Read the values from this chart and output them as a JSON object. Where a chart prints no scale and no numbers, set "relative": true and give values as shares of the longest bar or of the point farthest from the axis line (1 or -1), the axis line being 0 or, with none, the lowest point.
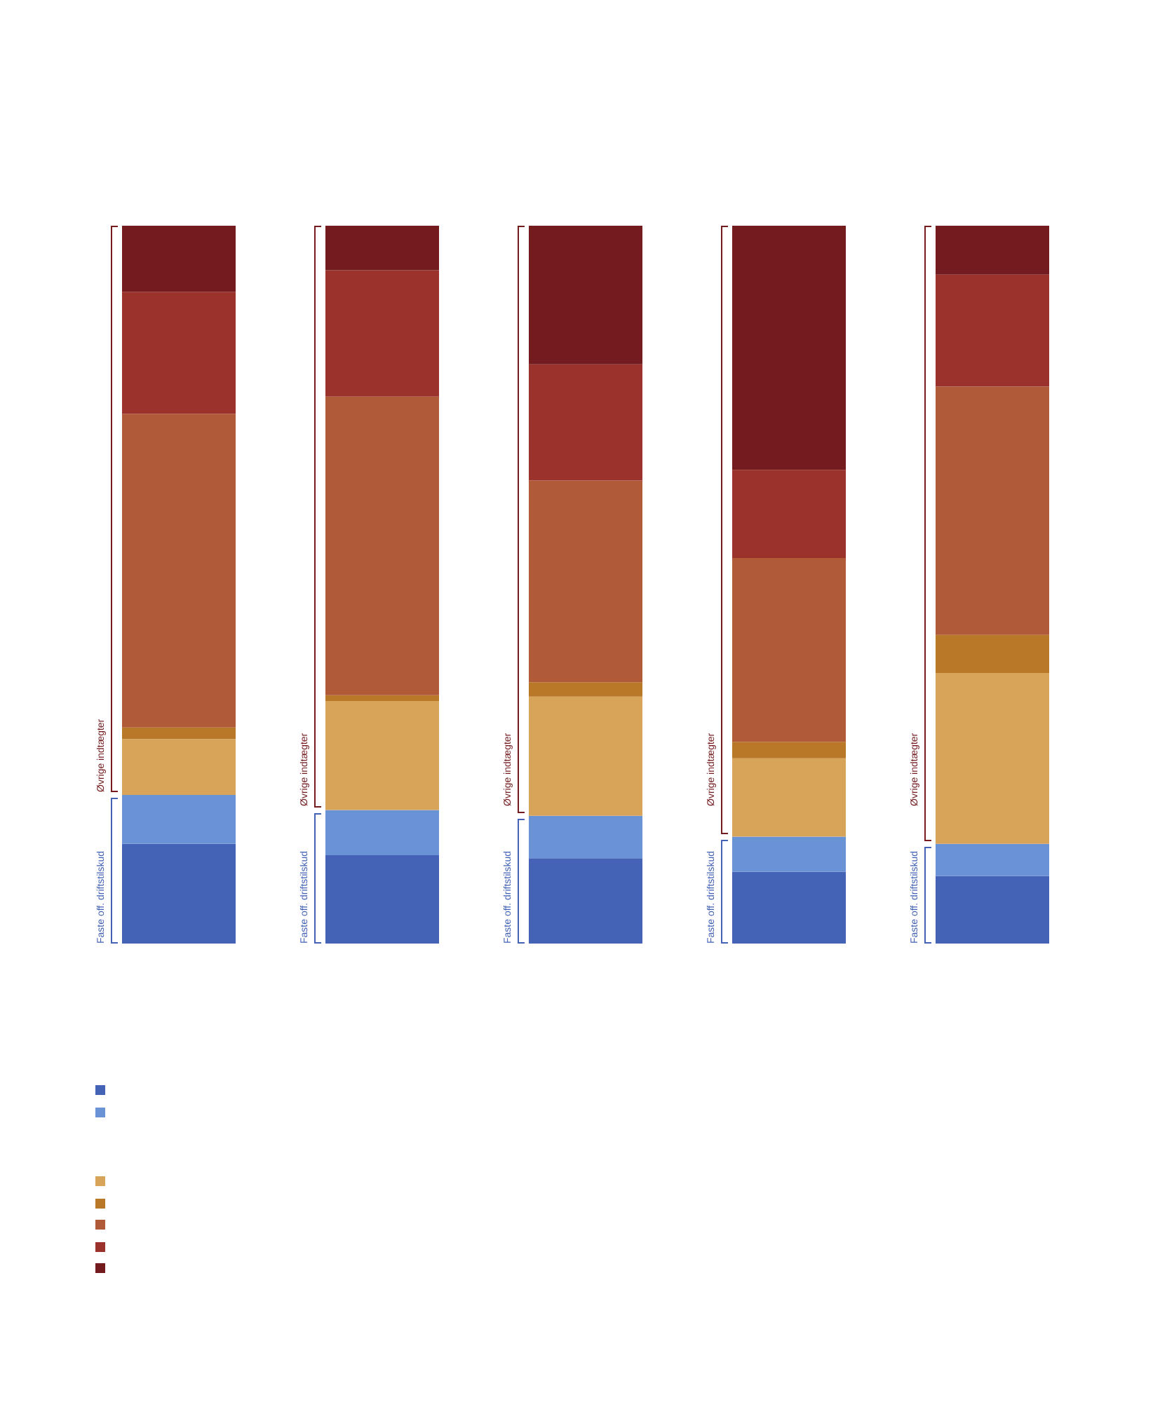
{
  "chart_data": {
    "type": "bar",
    "stacked": true,
    "relative": true,
    "categories": [
      null,
      null,
      null,
      null,
      null
    ],
    "series": [
      {
        "color": "#4463b6",
        "values": [
          0.139,
          0.123,
          0.119,
          0.1,
          0.094
        ]
      },
      {
        "color": "#6a93d6",
        "values": [
          0.068,
          0.063,
          0.059,
          0.049,
          0.045
        ]
      },
      {
        "color": "#d7a45a",
        "values": [
          0.078,
          0.152,
          0.166,
          0.109,
          0.238
        ]
      },
      {
        "color": "#b87828",
        "values": [
          0.016,
          0.008,
          0.02,
          0.023,
          0.053
        ]
      },
      {
        "color": "#b05a38",
        "values": [
          0.437,
          0.416,
          0.281,
          0.256,
          0.346
        ]
      },
      {
        "color": "#9b322c",
        "values": [
          0.17,
          0.176,
          0.162,
          0.123,
          0.156
        ]
      },
      {
        "color": "#731b1f",
        "values": [
          0.092,
          0.062,
          0.193,
          0.34,
          0.068
        ]
      }
    ],
    "annotations": [
      "Faste off. driftstilskud",
      "Øvrige indtægter",
      "Faste off. driftstilskud",
      "Øvrige indtægter",
      "Faste off. driftstilskud",
      "Øvrige indtægter",
      "Faste off. driftstilskud",
      "Øvrige indtægter",
      "Faste off. driftstilskud",
      "Øvrige indtægter"
    ]
  }
}
